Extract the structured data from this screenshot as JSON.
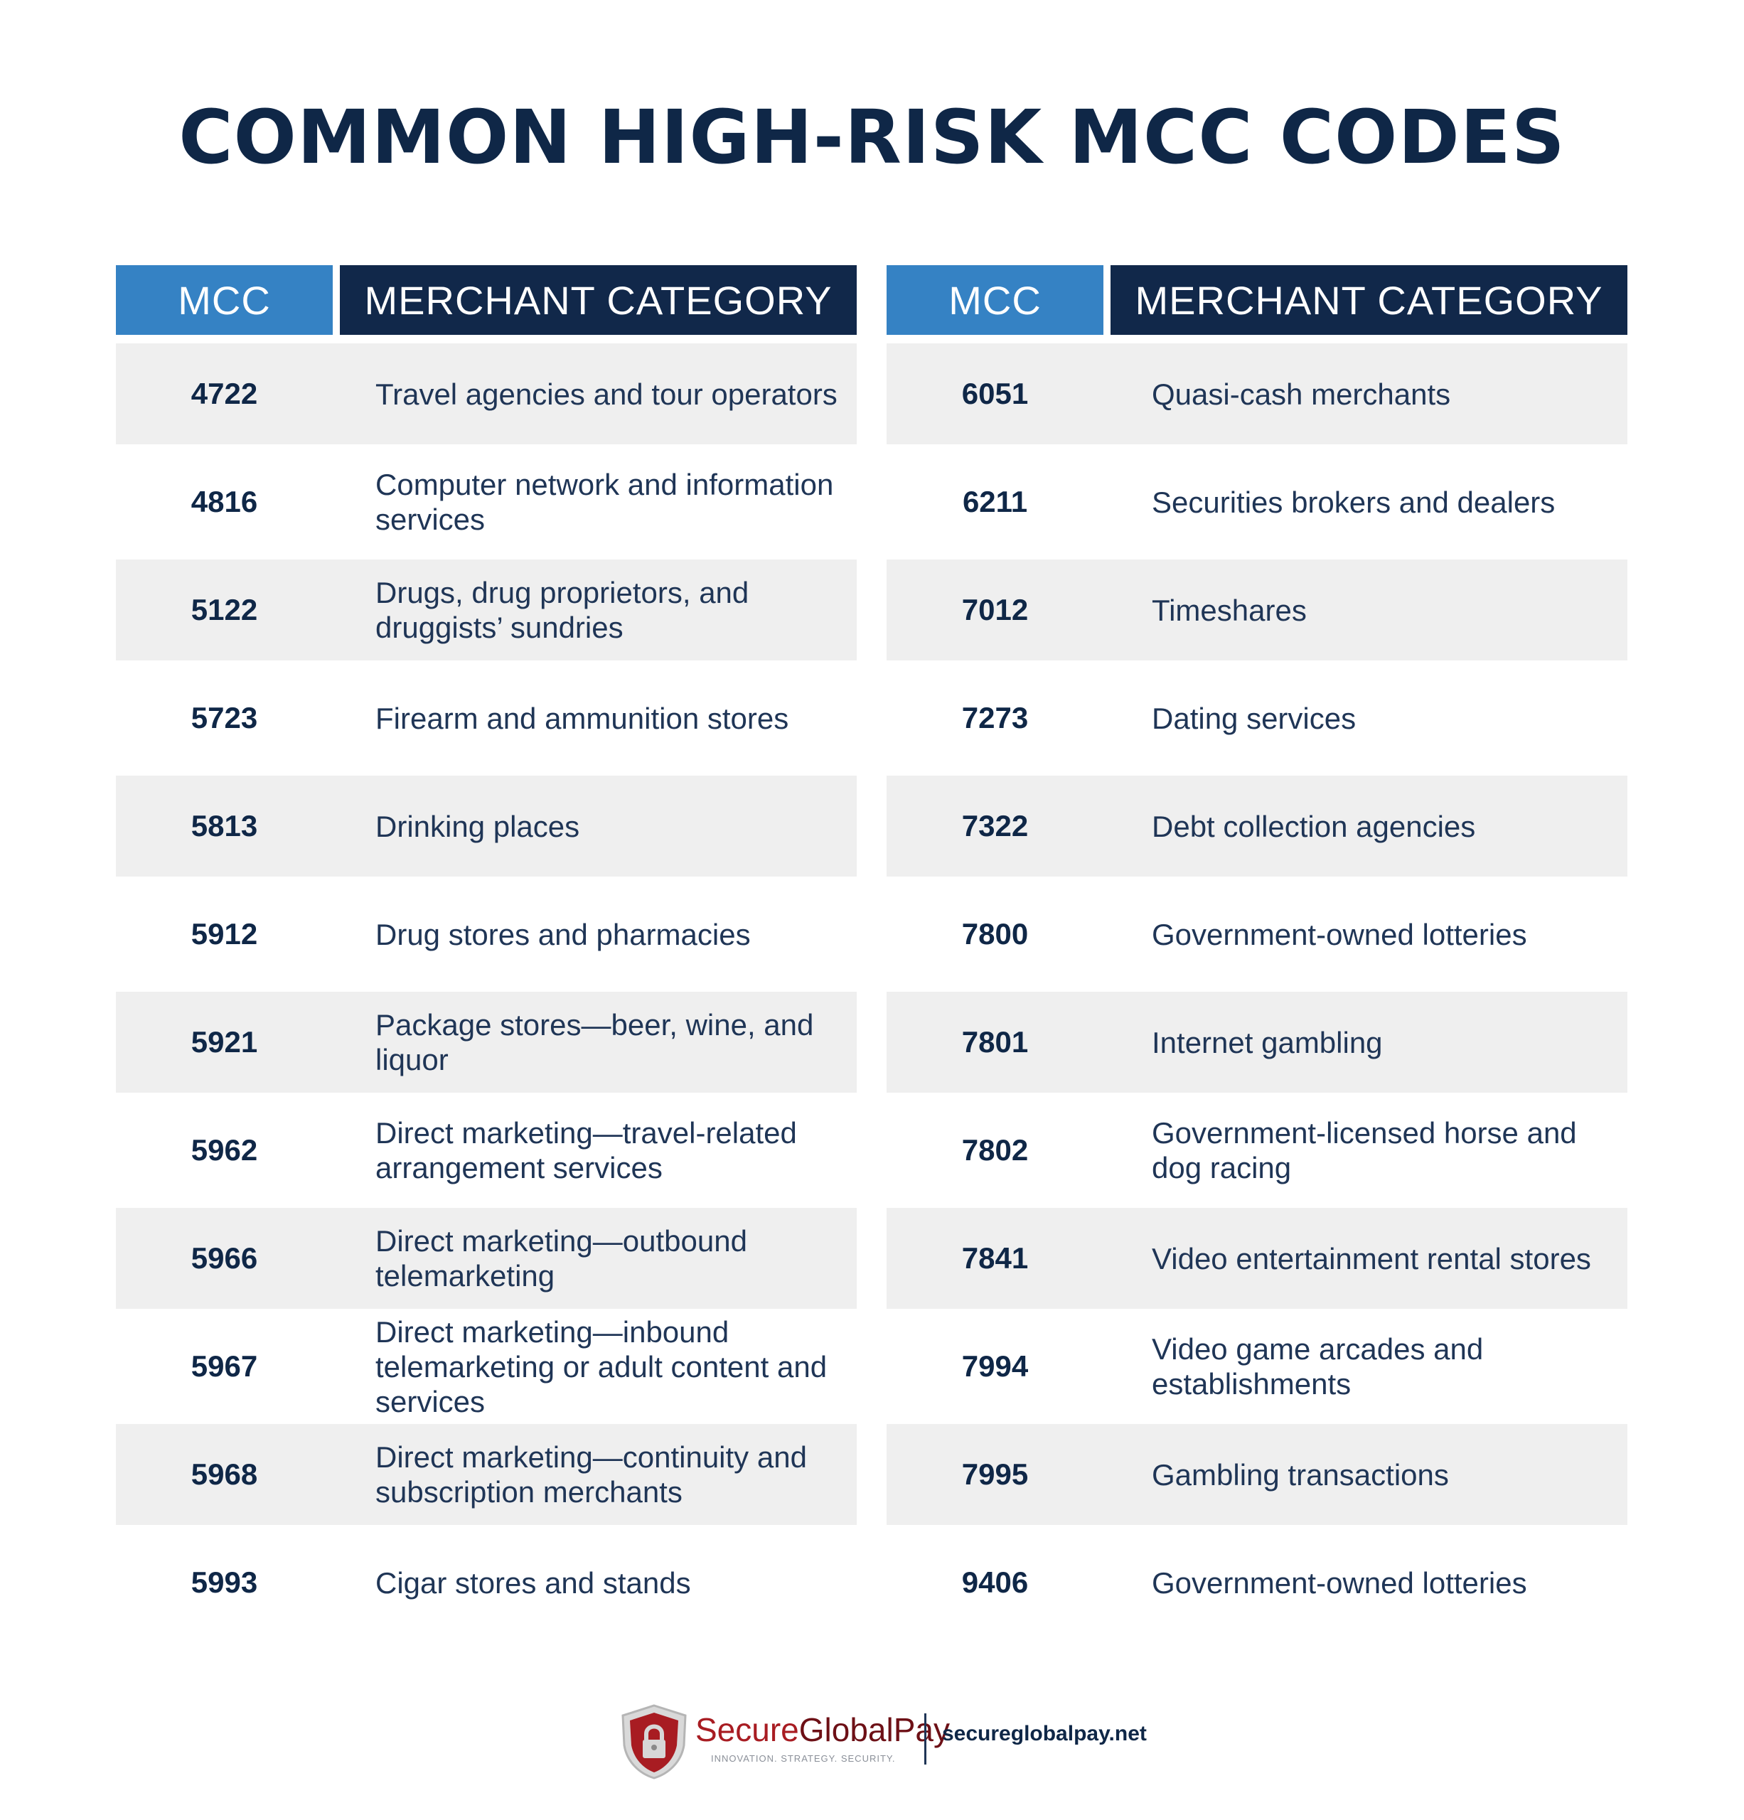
{
  "title": "COMMON HIGH-RISK MCC CODES",
  "colors": {
    "title": "#0f2747",
    "header_mcc_bg": "#3582c4",
    "header_category_bg": "#11284a",
    "row_shade": "#efefef",
    "brand_red": "#a81c22"
  },
  "tables": [
    {
      "header": {
        "mcc": "MCC",
        "category": "MERCHANT CATEGORY"
      },
      "rows": [
        {
          "mcc": "4722",
          "category": "Travel agencies and tour operators"
        },
        {
          "mcc": "4816",
          "category": "Computer network and information services"
        },
        {
          "mcc": "5122",
          "category": "Drugs, drug proprietors, and druggists’ sundries"
        },
        {
          "mcc": "5723",
          "category": "Firearm and ammunition stores"
        },
        {
          "mcc": "5813",
          "category": "Drinking places"
        },
        {
          "mcc": "5912",
          "category": "Drug stores and pharmacies"
        },
        {
          "mcc": "5921",
          "category": "Package stores—beer, wine, and liquor"
        },
        {
          "mcc": "5962",
          "category": "Direct marketing—travel-related arrangement services"
        },
        {
          "mcc": "5966",
          "category": "Direct marketing—outbound telemarketing"
        },
        {
          "mcc": "5967",
          "category": "Direct marketing—inbound telemarketing or adult content and services"
        },
        {
          "mcc": "5968",
          "category": "Direct marketing—continuity and subscription merchants"
        },
        {
          "mcc": "5993",
          "category": "Cigar stores and stands"
        }
      ]
    },
    {
      "header": {
        "mcc": "MCC",
        "category": "MERCHANT CATEGORY"
      },
      "rows": [
        {
          "mcc": "6051",
          "category": "Quasi-cash merchants"
        },
        {
          "mcc": "6211",
          "category": "Securities brokers and dealers"
        },
        {
          "mcc": "7012",
          "category": "Timeshares"
        },
        {
          "mcc": "7273",
          "category": "Dating services"
        },
        {
          "mcc": "7322",
          "category": "Debt collection agencies"
        },
        {
          "mcc": "7800",
          "category": "Government-owned lotteries"
        },
        {
          "mcc": "7801",
          "category": "Internet gambling"
        },
        {
          "mcc": "7802",
          "category": "Government-licensed horse and dog racing"
        },
        {
          "mcc": "7841",
          "category": "Video entertainment rental stores"
        },
        {
          "mcc": "7994",
          "category": "Video game arcades and establishments"
        },
        {
          "mcc": "7995",
          "category": "Gambling transactions"
        },
        {
          "mcc": "9406",
          "category": "Government-owned lotteries"
        }
      ]
    }
  ],
  "footer": {
    "brand_secure": "Secure",
    "brand_global": "GlobalPay",
    "tagline": "INNOVATION. STRATEGY. SECURITY.",
    "website": "secureglobalpay.net",
    "logo_icon": "shield-lock-icon"
  }
}
